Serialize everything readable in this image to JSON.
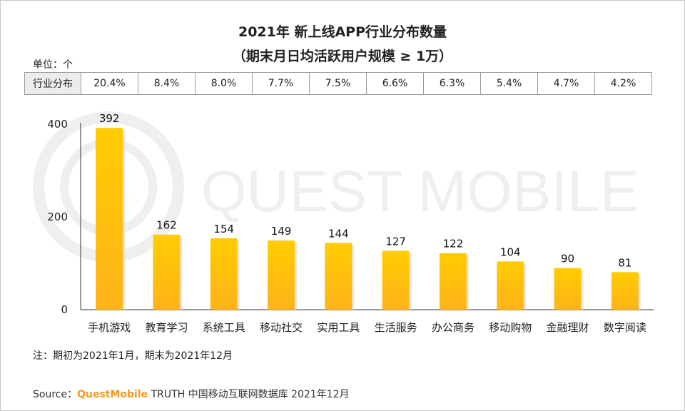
{
  "chart_data": {
    "type": "bar",
    "title": "2021年 新上线APP行业分布数量",
    "subtitle": "（期末月日均活跃用户规模 ≥ 1万）",
    "unit_label": "单位：个",
    "categories": [
      "手机游戏",
      "教育学习",
      "系统工具",
      "移动社交",
      "实用工具",
      "生活服务",
      "办公商务",
      "移动购物",
      "金融理财",
      "数字阅读"
    ],
    "values": [
      392,
      162,
      154,
      149,
      144,
      127,
      122,
      104,
      90,
      81
    ],
    "ylim": [
      0,
      400
    ],
    "yticks": [
      "0",
      "200",
      "400"
    ],
    "xlabel": "",
    "ylabel": "",
    "bar_color_top": "#ffcc00",
    "bar_color_bottom": "#ffb31a",
    "distribution": {
      "header": "行业分布",
      "values": [
        "20.4%",
        "8.4%",
        "8.0%",
        "7.7%",
        "7.5%",
        "6.6%",
        "6.3%",
        "5.4%",
        "4.7%",
        "4.2%"
      ]
    }
  },
  "watermark": "QUEST MOBILE",
  "note": "注：期初为2021年1月，期末为2021年12月",
  "source": {
    "prefix": "Source：",
    "brand": "QuestMobile",
    "rest": " TRUTH 中国移动互联网数据库 2021年12月"
  }
}
